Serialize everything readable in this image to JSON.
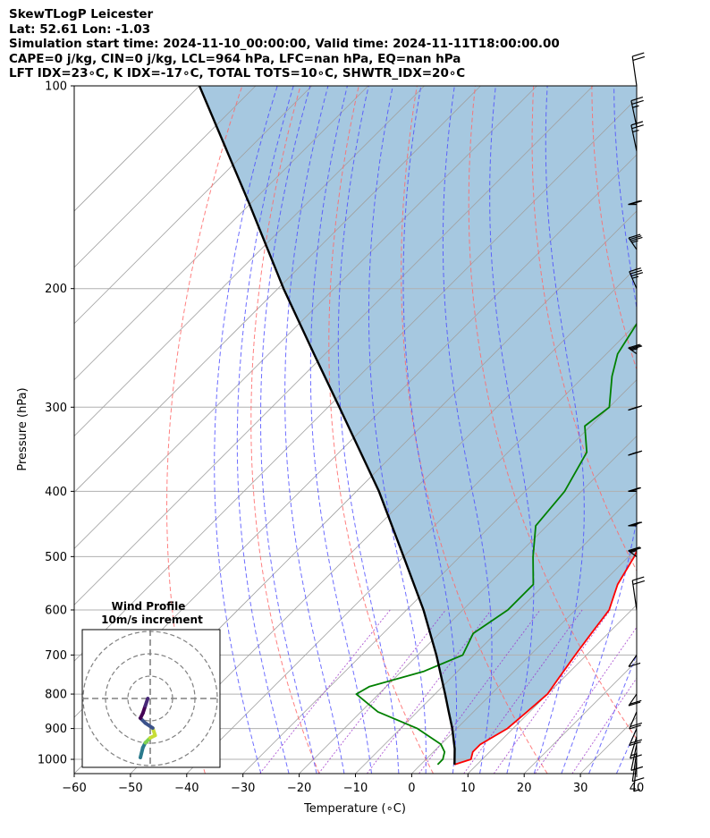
{
  "header": {
    "title": "SkewTLogP Leicester",
    "location": "Lat: 52.61   Lon: -1.03",
    "times": "Simulation start time: 2024-11-10_00:00:00, Valid time: 2024-11-11T18:00:00.00",
    "indices1": "CAPE=0 j/kg, CIN=0 j/kg, LCL=964 hPa, LFC=nan hPa, EQ=nan hPa",
    "indices2": "LFT IDX=23∘C, K IDX=-17∘C, TOTAL TOTS=10∘C, SHWTR_IDX=20∘C"
  },
  "chart_data": {
    "type": "line",
    "title": "SkewTLogP Leicester",
    "xlabel": "Temperature (∘C)",
    "ylabel": "Pressure (hPa)",
    "xlim": [
      -60,
      40
    ],
    "ylim": [
      1050,
      100
    ],
    "y_scale": "log",
    "x_ticks": [
      -60,
      -50,
      -40,
      -30,
      -20,
      -10,
      0,
      10,
      20,
      30,
      40
    ],
    "x_tick_labels": [
      "−60",
      "−50",
      "−40",
      "−30",
      "−20",
      "−10",
      "0",
      "10",
      "20",
      "30",
      "40"
    ],
    "y_ticks": [
      1000,
      900,
      800,
      700,
      600,
      500,
      400,
      300,
      200,
      100
    ],
    "y_tick_labels": [
      "1000",
      "900",
      "800",
      "700",
      "600",
      "500",
      "400",
      "300",
      "200",
      "100"
    ],
    "grid": true,
    "series": [
      {
        "kind": "temperature",
        "color": "#ff0000",
        "points": [
          [
            1018,
            6
          ],
          [
            1000,
            8
          ],
          [
            975,
            7
          ],
          [
            950,
            7
          ],
          [
            925,
            8
          ],
          [
            900,
            9
          ],
          [
            850,
            9.5
          ],
          [
            800,
            10
          ],
          [
            750,
            9
          ],
          [
            700,
            8
          ],
          [
            650,
            7
          ],
          [
            600,
            6
          ],
          [
            550,
            3
          ],
          [
            500,
            1
          ],
          [
            450,
            -2
          ],
          [
            400,
            -5
          ],
          [
            350,
            -11
          ],
          [
            300,
            -18
          ],
          [
            250,
            -27
          ],
          [
            220,
            -33
          ],
          [
            200,
            -35
          ],
          [
            175,
            -36
          ],
          [
            150,
            -37
          ],
          [
            130,
            -40
          ],
          [
            115,
            -42
          ],
          [
            100,
            -45
          ]
        ]
      },
      {
        "kind": "dewpoint",
        "color": "#008000",
        "points": [
          [
            1018,
            3
          ],
          [
            1000,
            3
          ],
          [
            975,
            2
          ],
          [
            950,
            0
          ],
          [
            900,
            -7
          ],
          [
            850,
            -17
          ],
          [
            800,
            -24
          ],
          [
            780,
            -23
          ],
          [
            740,
            -16
          ],
          [
            700,
            -12
          ],
          [
            650,
            -14
          ],
          [
            600,
            -12
          ],
          [
            550,
            -12
          ],
          [
            500,
            -17
          ],
          [
            450,
            -22
          ],
          [
            400,
            -23
          ],
          [
            350,
            -26
          ],
          [
            320,
            -31
          ],
          [
            300,
            -30
          ],
          [
            270,
            -35
          ],
          [
            250,
            -38
          ],
          [
            225,
            -40
          ],
          [
            200,
            -45
          ],
          [
            175,
            -44
          ],
          [
            160,
            -45
          ],
          [
            150,
            -46
          ],
          [
            130,
            -53
          ],
          [
            115,
            -53
          ],
          [
            100,
            -55
          ]
        ]
      },
      {
        "kind": "parcel",
        "color": "#000000",
        "points": [
          [
            1018,
            6
          ],
          [
            964,
            3.2
          ],
          [
            900,
            -0.8
          ],
          [
            850,
            -4.4
          ],
          [
            800,
            -8.2
          ],
          [
            700,
            -16.7
          ],
          [
            600,
            -27
          ],
          [
            500,
            -40
          ],
          [
            400,
            -56
          ],
          [
            300,
            -78
          ],
          [
            250,
            -92
          ],
          [
            200,
            -109
          ],
          [
            150,
            -130
          ],
          [
            100,
            -160
          ]
        ]
      }
    ],
    "cape_cin_shading_color": "#a6c8e0",
    "winds": [
      {
        "p": 1000,
        "speed_kt": 5,
        "dir": 200
      },
      {
        "p": 975,
        "speed_kt": 10,
        "dir": 210
      },
      {
        "p": 950,
        "speed_kt": 10,
        "dir": 220
      },
      {
        "p": 925,
        "speed_kt": 15,
        "dir": 230
      },
      {
        "p": 900,
        "speed_kt": 20,
        "dir": 240
      },
      {
        "p": 850,
        "speed_kt": 20,
        "dir": 240
      },
      {
        "p": 800,
        "speed_kt": 20,
        "dir": 250
      },
      {
        "p": 700,
        "speed_kt": 10,
        "dir": 250
      },
      {
        "p": 600,
        "speed_kt": 20,
        "dir": 330
      },
      {
        "p": 500,
        "speed_kt": 25,
        "dir": 280
      },
      {
        "p": 450,
        "speed_kt": 35,
        "dir": 270
      },
      {
        "p": 400,
        "speed_kt": 25,
        "dir": 270
      },
      {
        "p": 350,
        "speed_kt": 35,
        "dir": 265
      },
      {
        "p": 300,
        "speed_kt": 30,
        "dir": 265
      },
      {
        "p": 250,
        "speed_kt": 35,
        "dir": 280
      },
      {
        "p": 200,
        "speed_kt": 35,
        "dir": 300
      },
      {
        "p": 175,
        "speed_kt": 35,
        "dir": 290
      },
      {
        "p": 150,
        "speed_kt": 30,
        "dir": 270
      },
      {
        "p": 125,
        "speed_kt": 25,
        "dir": 320
      },
      {
        "p": 115,
        "speed_kt": 25,
        "dir": 320
      },
      {
        "p": 100,
        "speed_kt": 20,
        "dir": 330
      }
    ],
    "inset": {
      "title": "Wind Profile",
      "subtitle": "10m/s increment",
      "hodograph_uv": [
        [
          -2,
          -12
        ],
        [
          -1.5,
          -10
        ],
        [
          -1,
          -9
        ],
        [
          0,
          -8
        ],
        [
          1,
          -7.5
        ],
        [
          0.5,
          -6
        ],
        [
          -1,
          -5
        ],
        [
          -2,
          -4
        ],
        [
          -1.5,
          -3
        ],
        [
          -1,
          -1.5
        ],
        [
          -0.5,
          0
        ]
      ],
      "colors": [
        "#2a7a8c",
        "#2a7a8c",
        "#7ed34f",
        "#c8dd36",
        "#c8dd36",
        "#3b528b",
        "#3b528b",
        "#440154",
        "#440154",
        "#482878",
        "#482878"
      ]
    }
  }
}
